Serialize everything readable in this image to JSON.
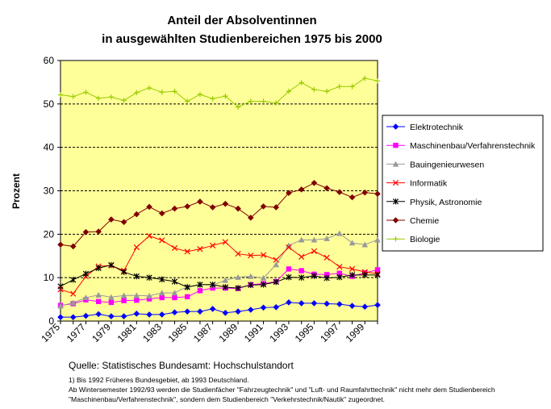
{
  "chart_data": {
    "type": "line",
    "title": [
      "Anteil der Absolventinnen",
      "in ausgewählten Studienbereichen 1975 bis 2000"
    ],
    "xlabel": "",
    "ylabel": "Prozent",
    "ylim": [
      0,
      60
    ],
    "yticks": [
      0,
      10,
      20,
      30,
      40,
      50,
      60
    ],
    "x": [
      1975,
      1976,
      1977,
      1978,
      1979,
      1980,
      1981,
      1982,
      1983,
      1984,
      1985,
      1986,
      1987,
      1988,
      1989,
      1990,
      1991,
      1992,
      1993,
      1994,
      1995,
      1996,
      1997,
      1998,
      1999,
      2000
    ],
    "xtick_labels": [
      "1975",
      "1977",
      "1979",
      "1981",
      "1983",
      "1985",
      "1987",
      "1989",
      "1991",
      "1993",
      "1995",
      "1997",
      "1999"
    ],
    "grid": "horizontal",
    "legend_position": "right",
    "plot_background": "#ffff99",
    "series": [
      {
        "name": "Elektrotechnik",
        "color": "#0000ff",
        "marker": "diamond",
        "values": [
          0.9,
          0.9,
          1.2,
          1.6,
          1.1,
          1.1,
          1.7,
          1.5,
          1.5,
          2.0,
          2.2,
          2.2,
          2.8,
          1.9,
          2.2,
          2.6,
          3.1,
          3.2,
          4.3,
          4.1,
          4.1,
          4.0,
          3.9,
          3.5,
          3.3,
          3.7
        ]
      },
      {
        "name": "Maschinenbau/Verfahrenstechnik",
        "color": "#ff00ff",
        "marker": "square",
        "values": [
          3.6,
          4.0,
          4.9,
          4.5,
          4.3,
          4.7,
          4.8,
          5.1,
          5.4,
          5.4,
          5.6,
          7.0,
          7.6,
          7.6,
          7.5,
          8.4,
          8.6,
          9.1,
          12.0,
          11.6,
          10.8,
          10.7,
          11.0,
          10.3,
          11.1,
          11.8
        ]
      },
      {
        "name": "Bauingenieurwesen",
        "color": "#999999",
        "marker": "triangle",
        "values": [
          3.5,
          4.2,
          5.4,
          6.0,
          5.5,
          5.9,
          5.9,
          5.8,
          6.5,
          6.5,
          7.9,
          8.4,
          8.3,
          9.4,
          10.1,
          10.3,
          9.9,
          13.0,
          17.4,
          18.7,
          18.7,
          19.0,
          20.2,
          18.0,
          17.6,
          18.7
        ]
      },
      {
        "name": "Informatik",
        "color": "#ff0000",
        "marker": "x",
        "values": [
          7.3,
          6.3,
          10.3,
          12.6,
          12.8,
          11.6,
          17.0,
          19.6,
          18.6,
          16.8,
          16.0,
          16.6,
          17.4,
          18.2,
          15.5,
          15.1,
          15.2,
          14.1,
          17.0,
          14.8,
          16.1,
          14.6,
          12.5,
          12.0,
          11.3,
          10.9
        ]
      },
      {
        "name": "Physik, Astronomie",
        "color": "#000000",
        "marker": "star",
        "values": [
          8.0,
          9.5,
          10.9,
          12.2,
          12.9,
          11.3,
          10.3,
          10.0,
          9.6,
          9.1,
          7.8,
          8.4,
          8.4,
          7.8,
          7.6,
          8.3,
          8.4,
          9.0,
          10.1,
          10.0,
          10.4,
          9.9,
          10.1,
          10.6,
          10.6,
          10.6
        ]
      },
      {
        "name": "Chemie",
        "color": "#800000",
        "marker": "diamond",
        "values": [
          17.6,
          17.2,
          20.5,
          20.6,
          23.4,
          22.8,
          24.6,
          26.3,
          24.8,
          25.9,
          26.4,
          27.5,
          26.2,
          27.0,
          25.9,
          23.8,
          26.4,
          26.2,
          29.5,
          30.3,
          31.8,
          30.6,
          29.7,
          28.5,
          29.6,
          29.3
        ]
      },
      {
        "name": "Biologie",
        "color": "#99cc00",
        "marker": "plus",
        "values": [
          52.1,
          51.7,
          52.7,
          51.3,
          51.6,
          50.8,
          52.6,
          53.7,
          52.7,
          52.9,
          50.6,
          52.2,
          51.2,
          51.8,
          49.3,
          50.6,
          50.6,
          50.2,
          52.9,
          54.9,
          53.3,
          52.9,
          54.0,
          54.0,
          55.9,
          55.3
        ]
      }
    ]
  },
  "source": "Quelle: Statistisches Bundesamt: Hochschulstandort",
  "footnotes": [
    "1) Bis 1992 Früheres Bundesgebiet, ab 1993 Deutschland.",
    "Ab Wintersemester 1992/93 werden die Studienfächer \"Fahrzeugtechnik\" und \"Luft- und Raumfahrttechnik\" nicht mehr dem Studienbereich",
    "\"Maschinenbau/Verfahrenstechnik\", sondern dem Studienbereich \"Verkehrstechnik/Nautik\" zugeordnet."
  ]
}
